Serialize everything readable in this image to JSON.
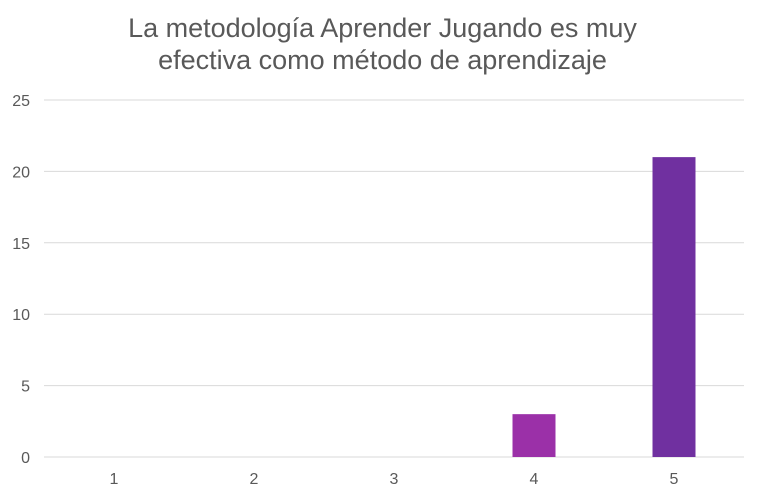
{
  "chart_data": {
    "type": "bar",
    "title_lines": [
      "La metodología Aprender Jugando es muy",
      "efectiva como método de aprendizaje"
    ],
    "categories": [
      "1",
      "2",
      "3",
      "4",
      "5"
    ],
    "values": [
      0,
      0,
      0,
      3,
      21
    ],
    "bar_colors": [
      "#9B30A8",
      "#9B30A8",
      "#9B30A8",
      "#9B30A8",
      "#7030A0"
    ],
    "ylim": [
      0,
      25
    ],
    "yticks": [
      "0",
      "5",
      "10",
      "15",
      "20",
      "25"
    ],
    "grid": true,
    "legend": "none",
    "xlabel": "",
    "ylabel": ""
  }
}
